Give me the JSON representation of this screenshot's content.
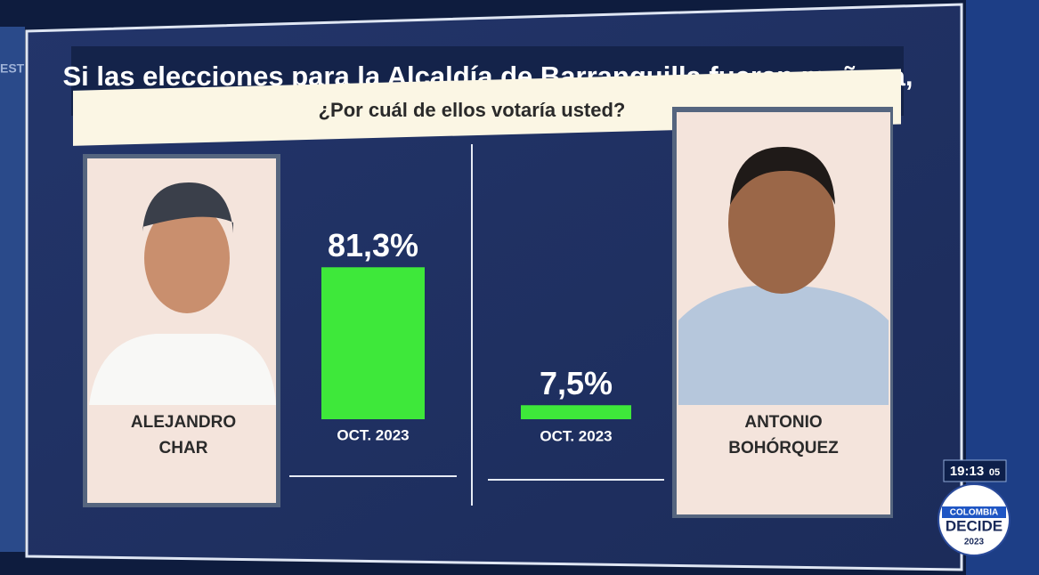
{
  "chart_data": {
    "type": "bar",
    "title": "Si las elecciones para la Alcaldía de Barranquilla fueran mañana,",
    "subtitle": "¿Por cuál de ellos votaría usted?",
    "categories": [
      "OCT. 2023",
      "OCT. 2023"
    ],
    "values": [
      81.3,
      7.5
    ],
    "value_labels": [
      "81,3%",
      "7,5%"
    ],
    "color": "#3ee83a",
    "candidates": [
      [
        "ALEJANDRO",
        "CHAR"
      ],
      [
        "ANTONIO",
        "BOHÓRQUEZ"
      ]
    ]
  },
  "overlay": {
    "side_text": "EST",
    "time": "19:13",
    "seconds": "05",
    "logo": [
      "COLOMBIA",
      "DECIDE",
      "2023"
    ]
  }
}
